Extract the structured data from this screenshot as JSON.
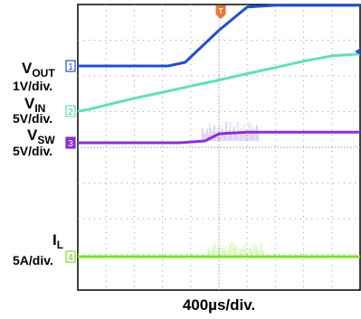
{
  "chart_data": {
    "type": "line",
    "title": "",
    "xlabel": "400µs/div.",
    "grid": true,
    "trigger_marker": "T",
    "level_marker": "arrow-left",
    "series": [
      {
        "name": "V_OUT",
        "label_main": "V",
        "label_sub": "OUT",
        "scale": "1V/div.",
        "channel": "1",
        "color": "#1f4fd1",
        "x": [
          0,
          3.2,
          3.8,
          5.0,
          6.0,
          7.0,
          8.0,
          10.0
        ],
        "y": [
          0,
          0,
          0.1,
          1.0,
          1.65,
          1.7,
          1.7,
          1.7
        ]
      },
      {
        "name": "V_IN",
        "label_main": "V",
        "label_sub": "IN",
        "scale": "5V/div.",
        "channel": "2",
        "color": "#5de0c0",
        "x": [
          0,
          0.4,
          1.0,
          2.0,
          3.0,
          4.0,
          5.0,
          6.0,
          7.0,
          8.0,
          9.0,
          10.0
        ],
        "y": [
          0,
          0.05,
          0.17,
          0.36,
          0.53,
          0.7,
          0.87,
          1.05,
          1.22,
          1.4,
          1.55,
          1.6
        ]
      },
      {
        "name": "V_SW",
        "label_main": "V",
        "label_sub": "SW",
        "scale": "5V/div.",
        "channel": "3",
        "color": "#8a2ed8",
        "x": [
          0,
          3.6,
          4.5,
          5.0,
          6.0,
          8.0,
          10.0
        ],
        "y": [
          0,
          0,
          0.05,
          0.25,
          0.3,
          0.3,
          0.3
        ]
      },
      {
        "name": "I_L",
        "label_main": "I",
        "label_sub": "L",
        "scale": "5A/div.",
        "channel": "4",
        "color": "#7ee02a",
        "x": [
          0,
          10.0
        ],
        "y": [
          0,
          0
        ]
      }
    ]
  }
}
